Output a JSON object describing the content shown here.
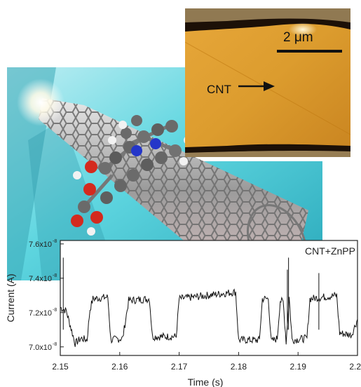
{
  "inset": {
    "cnt_label": "CNT",
    "scale_label": "2 μm"
  },
  "chart_data": {
    "type": "line",
    "legend": "CNT+ZnPP",
    "xlabel": "Time (s)",
    "ylabel": "Current (A)",
    "xlim": [
      2.15,
      2.2
    ],
    "ylim": [
      6.95e-08,
      7.62e-08
    ],
    "x_ticks": [
      2.15,
      2.16,
      2.17,
      2.18,
      2.19,
      2.2
    ],
    "x_tick_labels": [
      "2.15",
      "2.16",
      "2.17",
      "2.18",
      "2.19",
      "2.20"
    ],
    "y_ticks": [
      7e-08,
      7.2e-08,
      7.4e-08,
      7.6e-08
    ],
    "y_tick_mantissas": [
      "7.0x10",
      "7.2x10",
      "7.4x10",
      "7.6x10"
    ],
    "y_tick_exponent": "-8",
    "series": [
      {
        "x": [
          2.15,
          2.151,
          2.1525,
          2.1535,
          2.1545,
          2.155,
          2.1555,
          2.158,
          2.1585,
          2.1605,
          2.1615,
          2.165,
          2.1655,
          2.1695,
          2.17,
          2.1795,
          2.18,
          2.1835,
          2.184,
          2.185,
          2.1855,
          2.1865,
          2.187,
          2.1875,
          2.188,
          2.1885,
          2.189,
          2.1915,
          2.192,
          2.1965,
          2.197,
          2.199,
          2.2
        ],
        "y": [
          7.23e-08,
          7.21e-08,
          7.02e-08,
          7.05e-08,
          7.04e-08,
          7.22e-08,
          7.28e-08,
          7.29e-08,
          7.04e-08,
          7.05e-08,
          7.27e-08,
          7.28e-08,
          7.06e-08,
          7.06e-08,
          7.28e-08,
          7.32e-08,
          7.04e-08,
          7.04e-08,
          7.28e-08,
          7.28e-08,
          7.03e-08,
          7.05e-08,
          7.27e-08,
          7.26e-08,
          7.03e-08,
          7.29e-08,
          7.04e-08,
          7.05e-08,
          7.28e-08,
          7.3e-08,
          7.08e-08,
          7.07e-08,
          7.16e-08
        ]
      }
    ]
  }
}
